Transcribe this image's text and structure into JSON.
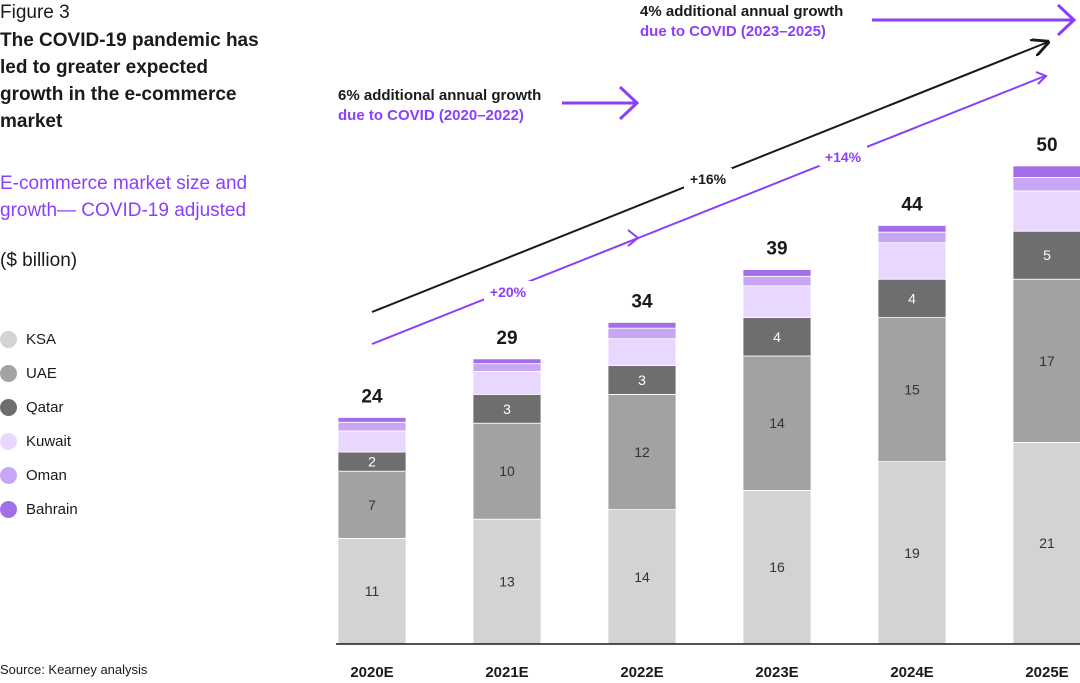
{
  "figure_label": "Figure 3",
  "title": "The COVID-19 pandemic has led to greater expected growth in the e-commerce market",
  "subtitle": "E-commerce market size and growth— COVID-19 adjusted",
  "unit": "($ billion)",
  "source": "Source: Kearney analysis",
  "colors": {
    "KSA": "#d3d3d3",
    "UAE": "#a2a2a2",
    "Qatar": "#6e6e6e",
    "Kuwait": "#e9d7ff",
    "Oman": "#c9a6f5",
    "Bahrain": "#a46ee8",
    "accent": "#8a3ffc",
    "dark": "#1a1a1a"
  },
  "callouts": {
    "upper": {
      "line1": "4% additional annual growth",
      "line2": "due to COVID (2023–2025)"
    },
    "lower": {
      "line1": "6% additional annual growth",
      "line2": "due to COVID (2020–2022)"
    }
  },
  "growth_labels": {
    "black": "+16%",
    "purple_1": "+20%",
    "purple_2": "+14%"
  },
  "chart_data": {
    "type": "bar",
    "stacked": true,
    "categories": [
      "2020E",
      "2021E",
      "2022E",
      "2023E",
      "2024E",
      "2025E"
    ],
    "totals": [
      24,
      29,
      34,
      39,
      44,
      50
    ],
    "series": [
      {
        "name": "KSA",
        "values": [
          11,
          13,
          14,
          16,
          19,
          21
        ],
        "labels": [
          "11",
          "13",
          "14",
          "16",
          "19",
          "21"
        ]
      },
      {
        "name": "UAE",
        "values": [
          7,
          10,
          12,
          14,
          15,
          17
        ],
        "labels": [
          "7",
          "10",
          "12",
          "14",
          "15",
          "17"
        ]
      },
      {
        "name": "Qatar",
        "values": [
          2,
          3,
          3,
          4,
          4,
          5
        ],
        "labels": [
          "2",
          "3",
          "3",
          "4",
          "4",
          "5"
        ]
      },
      {
        "name": "Kuwait",
        "values": [
          2.2,
          2.4,
          2.8,
          3.3,
          3.8,
          4.2
        ]
      },
      {
        "name": "Oman",
        "values": [
          0.9,
          0.8,
          1.1,
          1.0,
          1.1,
          1.4
        ]
      },
      {
        "name": "Bahrain",
        "values": [
          0.5,
          0.5,
          0.6,
          0.7,
          0.7,
          1.2
        ]
      }
    ],
    "title": "E-commerce market size and growth—COVID-19 adjusted",
    "ylabel": "$ billion",
    "ylim": [
      0,
      50
    ],
    "legend_position": "left"
  }
}
